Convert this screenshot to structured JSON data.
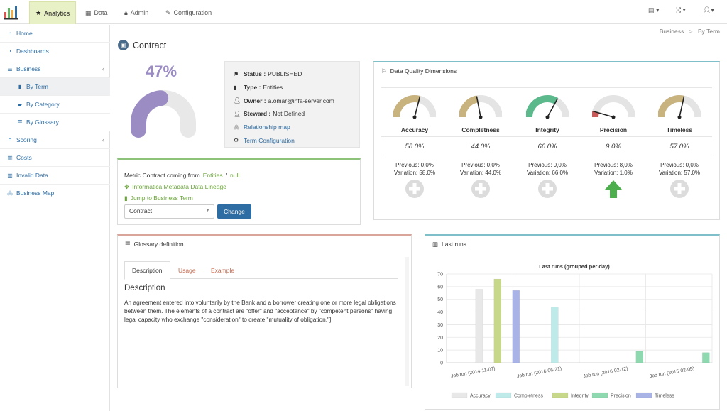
{
  "nav": {
    "tabs": [
      {
        "label": "Analytics",
        "icon": "star-icon"
      },
      {
        "label": "Data",
        "icon": "grid-icon"
      },
      {
        "label": "Admin",
        "icon": "lock-icon"
      },
      {
        "label": "Configuration",
        "icon": "wrench-icon"
      }
    ]
  },
  "sidebar": {
    "items": [
      {
        "label": "Home"
      },
      {
        "label": "Dashboards"
      },
      {
        "label": "Business"
      },
      {
        "label": "By Term"
      },
      {
        "label": "By Category"
      },
      {
        "label": "By Glossary"
      },
      {
        "label": "Scoring"
      },
      {
        "label": "Costs"
      },
      {
        "label": "Invalid Data"
      },
      {
        "label": "Business Map"
      }
    ]
  },
  "breadcrumb": {
    "items": [
      "Business",
      "By Term"
    ],
    "separator": ">"
  },
  "page": {
    "title": "Contract"
  },
  "score": {
    "percent_label": "47%",
    "value": 0.47,
    "color": "#9b8cc4"
  },
  "info": {
    "status_label": "Status :",
    "status": "PUBLISHED",
    "type_label": "Type :",
    "type": "Entities",
    "owner_label": "Owner :",
    "owner": "a.omar@infa-server.com",
    "steward_label": "Steward :",
    "steward": "Not Defined",
    "relationship_link": "Relationship map",
    "term_config_link": "Term Configuration"
  },
  "metric": {
    "prefix": "Metric Contract coming from",
    "source": "Entities",
    "slash": "/",
    "null_text": "null",
    "lineage_link": "Informatica Metadata Data Lineage",
    "jump_link": "Jump to Business Term",
    "select_value": "Contract",
    "change_label": "Change"
  },
  "dq": {
    "title": "Data Quality Dimensions",
    "dimensions": [
      {
        "name": "Accuracy",
        "value": "58.0%",
        "level": 0.58,
        "color": "#c8b27e",
        "previous": "Previous: 0,0%",
        "variation": "Variation: 58,0%",
        "trend": "plus"
      },
      {
        "name": "Completness",
        "value": "44.0%",
        "level": 0.44,
        "color": "#c8b27e",
        "previous": "Previous: 0,0%",
        "variation": "Variation: 44,0%",
        "trend": "plus"
      },
      {
        "name": "Integrity",
        "value": "66.0%",
        "level": 0.66,
        "color": "#5cb98c",
        "previous": "Previous: 0,0%",
        "variation": "Variation: 66,0%",
        "trend": "plus"
      },
      {
        "name": "Precision",
        "value": "9.0%",
        "level": 0.09,
        "color": "#c85a5a",
        "previous": "Previous: 8,0%",
        "variation": "Variation: 1,0%",
        "trend": "up"
      },
      {
        "name": "Timeless",
        "value": "57.0%",
        "level": 0.57,
        "color": "#c8b27e",
        "previous": "Previous: 0,0%",
        "variation": "Variation: 57,0%",
        "trend": "plus"
      }
    ]
  },
  "glossary": {
    "title": "Glossary definition",
    "tabs": [
      "Description",
      "Usage",
      "Example"
    ],
    "heading": "Description",
    "text": "An agreement entered into voluntarily by the Bank and a borrower creating one or more legal obligations between them. The elements of a contract are \"offer\" and \"acceptance\" by \"competent persons\" having legal capacity who exchange \"consideration\" to create \"mutuality of obligation.\"]"
  },
  "lastruns": {
    "title": "Last runs"
  },
  "chart_data": {
    "type": "bar",
    "title": "Last runs (grouped per day)",
    "categories": [
      "Job run (2014-11-07)",
      "Job run (2016-06-21)",
      "Job run (2016-02-12)",
      "Job run (2015-02-05)"
    ],
    "ylim": [
      0,
      70
    ],
    "yticks": [
      0,
      10,
      20,
      30,
      40,
      50,
      60,
      70
    ],
    "grid": true,
    "legend_position": "bottom",
    "series": [
      {
        "name": "Accuracy",
        "color": "#e8e8e8",
        "values": [
          58,
          null,
          null,
          null
        ]
      },
      {
        "name": "Completness",
        "color": "#bfeaea",
        "values": [
          null,
          44,
          null,
          null
        ]
      },
      {
        "name": "Integrity",
        "color": "#c8d88a",
        "values": [
          66,
          null,
          null,
          null
        ]
      },
      {
        "name": "Precision",
        "color": "#8ed9b0",
        "values": [
          null,
          null,
          9,
          8
        ]
      },
      {
        "name": "Timeless",
        "color": "#a9b3e6",
        "values": [
          57,
          null,
          null,
          null
        ]
      }
    ]
  }
}
